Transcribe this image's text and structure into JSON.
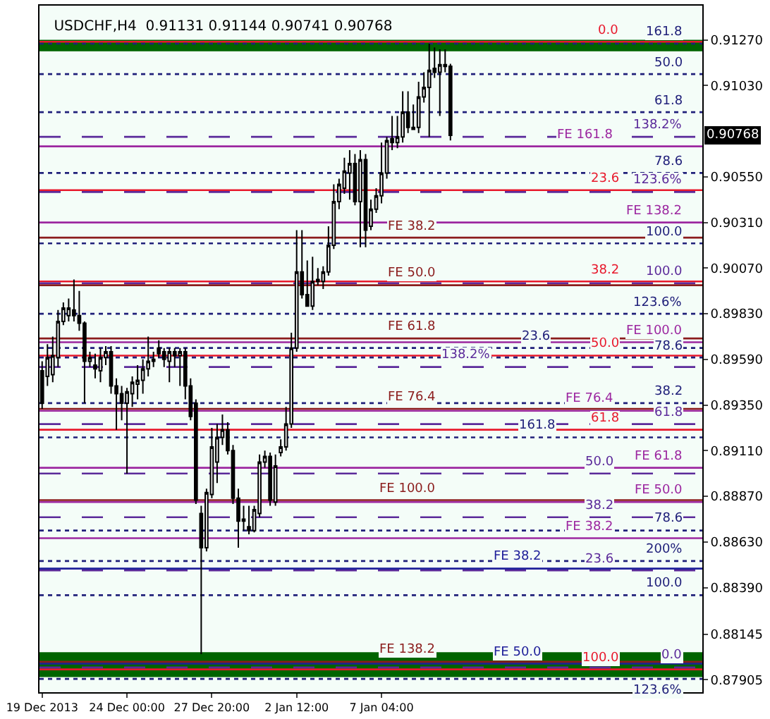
{
  "chart_data": {
    "type": "candlestick",
    "title": "USDCHF,H4  0.91131 0.91144 0.90741 0.90768",
    "color": "#000000",
    "categories": [
      "19 Dec 2013",
      null,
      null,
      null,
      null,
      null,
      null,
      null,
      null,
      null,
      null,
      null,
      null,
      null,
      null,
      null,
      "24 Dec 00:00",
      null,
      null,
      null,
      null,
      null,
      null,
      null,
      null,
      null,
      null,
      null,
      null,
      null,
      null,
      null,
      "27 Dec 20:00",
      null,
      null,
      null,
      null,
      null,
      null,
      null,
      null,
      null,
      null,
      null,
      null,
      null,
      null,
      null,
      "2 Jan 12:00",
      null,
      null,
      null,
      null,
      null,
      null,
      null,
      null,
      null,
      null,
      null,
      null,
      null,
      null,
      null,
      "7 Jan 04:00",
      null,
      null,
      null,
      null,
      null,
      null,
      null,
      null,
      null,
      null,
      null,
      null,
      null,
      null,
      null,
      null,
      null,
      null,
      null,
      null,
      null,
      null,
      null,
      null,
      null,
      null,
      null,
      null,
      null,
      null,
      null,
      null,
      null,
      null,
      null,
      null,
      null,
      null,
      null,
      null,
      null,
      null,
      null,
      null,
      null,
      null,
      null,
      null,
      null,
      null,
      null,
      null,
      null,
      null,
      null,
      null,
      null,
      null,
      null,
      null
    ],
    "ohlc": [
      [
        0.8953,
        0.8958,
        0.8933,
        0.8936
      ],
      [
        0.895,
        0.8967,
        0.8945,
        0.896
      ],
      [
        0.8951,
        0.8971,
        0.8947,
        0.8961
      ],
      [
        0.896,
        0.8985,
        0.8955,
        0.8979
      ],
      [
        0.8979,
        0.8989,
        0.8977,
        0.8986
      ],
      [
        0.8982,
        0.8991,
        0.8979,
        0.8986
      ],
      [
        0.8985,
        0.9001,
        0.8979,
        0.8982
      ],
      [
        0.8982,
        0.8995,
        0.8974,
        0.8978
      ],
      [
        0.8978,
        0.8979,
        0.8936,
        0.8958
      ],
      [
        0.8958,
        0.8963,
        0.8955,
        0.896
      ],
      [
        0.8956,
        0.8962,
        0.8949,
        0.8954
      ],
      [
        0.8953,
        0.8965,
        0.8947,
        0.896
      ],
      [
        0.896,
        0.8966,
        0.8956,
        0.8963
      ],
      [
        0.8963,
        0.8966,
        0.8941,
        0.8945
      ],
      [
        0.8945,
        0.8949,
        0.8922,
        0.8941
      ],
      [
        0.8941,
        0.8945,
        0.8927,
        0.8936
      ],
      [
        0.8936,
        0.8944,
        0.8899,
        0.8942
      ],
      [
        0.8941,
        0.895,
        0.8934,
        0.8947
      ],
      [
        0.8946,
        0.8956,
        0.8938,
        0.8948
      ],
      [
        0.8948,
        0.8959,
        0.8941,
        0.8954
      ],
      [
        0.8954,
        0.8971,
        0.895,
        0.8958
      ],
      [
        0.8958,
        0.8963,
        0.8955,
        0.8959
      ],
      [
        0.8965,
        0.8969,
        0.896,
        0.8962
      ],
      [
        0.8963,
        0.8965,
        0.8955,
        0.8959
      ],
      [
        0.8958,
        0.8965,
        0.8947,
        0.8963
      ],
      [
        0.8963,
        0.8965,
        0.8955,
        0.8961
      ],
      [
        0.8961,
        0.8965,
        0.8945,
        0.8963
      ],
      [
        0.8963,
        0.8965,
        0.8938,
        0.8945
      ],
      [
        0.8945,
        0.8949,
        0.8927,
        0.8929
      ],
      [
        0.8936,
        0.8938,
        0.8883,
        0.8885
      ],
      [
        0.8878,
        0.8882,
        0.8804,
        0.886
      ],
      [
        0.886,
        0.8891,
        0.8858,
        0.8889
      ],
      [
        0.8888,
        0.8923,
        0.8886,
        0.8913
      ],
      [
        0.8905,
        0.8925,
        0.8894,
        0.8918
      ],
      [
        0.8918,
        0.893,
        0.8914,
        0.8922
      ],
      [
        0.8922,
        0.8926,
        0.8909,
        0.8911
      ],
      [
        0.8911,
        0.8914,
        0.8883,
        0.8886
      ],
      [
        0.8886,
        0.8891,
        0.886,
        0.8874
      ],
      [
        0.8874,
        0.8882,
        0.8869,
        0.8875
      ],
      [
        0.8871,
        0.8882,
        0.8867,
        0.8869
      ],
      [
        0.8869,
        0.8882,
        0.8868,
        0.888
      ],
      [
        0.8878,
        0.8909,
        0.8876,
        0.8905
      ],
      [
        0.8905,
        0.8911,
        0.8902,
        0.8908
      ],
      [
        0.8908,
        0.891,
        0.8882,
        0.8885
      ],
      [
        0.8884,
        0.8909,
        0.8882,
        0.8903
      ],
      [
        0.891,
        0.8917,
        0.8908,
        0.8913
      ],
      [
        0.8913,
        0.8934,
        0.8911,
        0.8925
      ],
      [
        0.8925,
        0.8973,
        0.8923,
        0.8965
      ],
      [
        0.8965,
        0.9027,
        0.8963,
        0.9005
      ],
      [
        0.9005,
        0.9027,
        0.8991,
        0.8993
      ],
      [
        0.8993,
        0.9011,
        0.8987,
        0.8987
      ],
      [
        0.8987,
        0.9013,
        0.8985,
        0.9
      ],
      [
        0.9,
        0.9007,
        0.8998,
        0.9001
      ],
      [
        0.9,
        0.9008,
        0.8996,
        0.9005
      ],
      [
        0.9005,
        0.9029,
        0.9003,
        0.9019
      ],
      [
        0.9019,
        0.9051,
        0.9017,
        0.9042
      ],
      [
        0.9042,
        0.9054,
        0.9038,
        0.9051
      ],
      [
        0.9049,
        0.9065,
        0.9046,
        0.9058
      ],
      [
        0.9057,
        0.9069,
        0.9043,
        0.9062
      ],
      [
        0.9062,
        0.9067,
        0.904,
        0.9042
      ],
      [
        0.9042,
        0.9069,
        0.9018,
        0.9064
      ],
      [
        0.9064,
        0.9067,
        0.9018,
        0.9027
      ],
      [
        0.9029,
        0.9043,
        0.9027,
        0.9038
      ],
      [
        0.9038,
        0.9049,
        0.9036,
        0.9045
      ],
      [
        0.9045,
        0.9073,
        0.9041,
        0.9057
      ],
      [
        0.9057,
        0.9076,
        0.9054,
        0.9074
      ],
      [
        0.9075,
        0.9087,
        0.9069,
        0.9073
      ],
      [
        0.9073,
        0.9087,
        0.907,
        0.9076
      ],
      [
        0.9076,
        0.91,
        0.9073,
        0.9089
      ],
      [
        0.9089,
        0.91,
        0.9078,
        0.9081
      ],
      [
        0.9081,
        0.9093,
        0.908,
        0.908
      ],
      [
        0.9081,
        0.9105,
        0.9078,
        0.9097
      ],
      [
        0.9097,
        0.911,
        0.9094,
        0.9102
      ],
      [
        0.9102,
        0.9125,
        0.9076,
        0.9111
      ],
      [
        0.9112,
        0.9123,
        0.9107,
        0.911
      ],
      [
        0.911,
        0.9122,
        0.9087,
        0.9114
      ],
      [
        0.9114,
        0.9122,
        0.911,
        0.9113
      ],
      [
        0.91131,
        0.91144,
        0.90741,
        0.90768
      ],
      null,
      null,
      null,
      null,
      null,
      null,
      null,
      null,
      null,
      null,
      null,
      null,
      null,
      null,
      null,
      null,
      null,
      null,
      null,
      null,
      null,
      null,
      null,
      null,
      null,
      null,
      null,
      null,
      null,
      null,
      null,
      null,
      null,
      null,
      null,
      null,
      null,
      null,
      null,
      null,
      null,
      null,
      null,
      null,
      null,
      null,
      null
    ],
    "ylim": [
      0.8784,
      0.9145
    ],
    "yticks": [
      {
        "value": 0.9127,
        "label": "0.91270"
      },
      {
        "value": 0.9103,
        "label": "0.91030"
      },
      {
        "value": 0.9055,
        "label": "0.90550"
      },
      {
        "value": 0.9031,
        "label": "0.90310"
      },
      {
        "value": 0.9007,
        "label": "0.90070"
      },
      {
        "value": 0.8983,
        "label": "0.89830"
      },
      {
        "value": 0.8959,
        "label": "0.89590"
      },
      {
        "value": 0.8935,
        "label": "0.89350"
      },
      {
        "value": 0.8911,
        "label": "0.89110"
      },
      {
        "value": 0.8887,
        "label": "0.88870"
      },
      {
        "value": 0.8863,
        "label": "0.88630"
      },
      {
        "value": 0.8839,
        "label": "0.88390"
      },
      0.88145,
      0.87905
    ],
    "bands": [
      {
        "axis": "y",
        "from": 0.9121,
        "to": 0.9127,
        "color": "#006400"
      },
      {
        "axis": "y",
        "from": 0.8792,
        "to": 0.8805,
        "color": "#006400"
      }
    ],
    "ref_lines": [
      {
        "axis": "y",
        "value": 0.9126,
        "color": "#e8192c",
        "line_style": "solid"
      },
      {
        "axis": "y",
        "value": 0.9048,
        "color": "#e8192c",
        "line_style": "solid"
      },
      {
        "axis": "y",
        "value": 0.9,
        "color": "#e8192c",
        "line_style": "solid"
      },
      {
        "axis": "y",
        "value": 0.8961,
        "color": "#e8192c",
        "line_style": "solid"
      },
      {
        "axis": "y",
        "value": 0.8922,
        "color": "#e8192c",
        "line_style": "solid"
      },
      {
        "axis": "y",
        "value": 0.8796,
        "color": "#e8192c",
        "line_style": "solid"
      },
      {
        "axis": "y",
        "value": 0.9125,
        "color": "#20207a",
        "line_style": "dotted"
      },
      {
        "axis": "y",
        "value": 0.9109,
        "color": "#20207a",
        "line_style": "dotted"
      },
      {
        "axis": "y",
        "value": 0.9089,
        "color": "#20207a",
        "line_style": "dotted"
      },
      {
        "axis": "y",
        "value": 0.9057,
        "color": "#20207a",
        "line_style": "dotted"
      },
      {
        "axis": "y",
        "value": 0.902,
        "color": "#20207a",
        "line_style": "dotted"
      },
      {
        "axis": "y",
        "value": 0.8983,
        "color": "#20207a",
        "line_style": "dotted"
      },
      {
        "axis": "y",
        "value": 0.8965,
        "color": "#20207a",
        "line_style": "dotted"
      },
      {
        "axis": "y",
        "value": 0.896,
        "color": "#20207a",
        "line_style": "dotted"
      },
      {
        "axis": "y",
        "value": 0.8936,
        "color": "#20207a",
        "line_style": "dotted"
      },
      {
        "axis": "y",
        "value": 0.8918,
        "color": "#20207a",
        "line_style": "dotted"
      },
      {
        "axis": "y",
        "value": 0.8869,
        "color": "#20207a",
        "line_style": "dotted"
      },
      {
        "axis": "y",
        "value": 0.8853,
        "color": "#20207a",
        "line_style": "dotted"
      },
      {
        "axis": "y",
        "value": 0.8835,
        "color": "#20207a",
        "line_style": "dotted"
      },
      {
        "axis": "y",
        "value": 0.8791,
        "color": "#20207a",
        "line_style": "dotted"
      },
      {
        "axis": "y",
        "value": 0.9076,
        "color": "#5b2a9a",
        "line_style": "dashed"
      },
      {
        "axis": "y",
        "value": 0.9047,
        "color": "#5b2a9a",
        "line_style": "dashed"
      },
      {
        "axis": "y",
        "value": 0.8999,
        "color": "#5b2a9a",
        "line_style": "dashed"
      },
      {
        "axis": "y",
        "value": 0.8955,
        "color": "#5b2a9a",
        "line_style": "dashed"
      },
      {
        "axis": "y",
        "value": 0.8925,
        "color": "#5b2a9a",
        "line_style": "dashed"
      },
      {
        "axis": "y",
        "value": 0.8899,
        "color": "#5b2a9a",
        "line_style": "dashed"
      },
      {
        "axis": "y",
        "value": 0.8876,
        "color": "#5b2a9a",
        "line_style": "dashed"
      },
      {
        "axis": "y",
        "value": 0.8848,
        "color": "#5b2a9a",
        "line_style": "dashed"
      },
      {
        "axis": "y",
        "value": 0.8797,
        "color": "#5b2a9a",
        "line_style": "dashed"
      },
      {
        "axis": "y",
        "value": 0.9071,
        "color": "#9c27a0",
        "line_style": "solid"
      },
      {
        "axis": "y",
        "value": 0.9031,
        "color": "#9c27a0",
        "line_style": "solid"
      },
      {
        "axis": "y",
        "value": 0.8968,
        "color": "#9c27a0",
        "line_style": "solid"
      },
      {
        "axis": "y",
        "value": 0.8932,
        "color": "#9c27a0",
        "line_style": "solid"
      },
      {
        "axis": "y",
        "value": 0.8902,
        "color": "#9c27a0",
        "line_style": "solid"
      },
      {
        "axis": "y",
        "value": 0.8884,
        "color": "#9c27a0",
        "line_style": "solid"
      },
      {
        "axis": "y",
        "value": 0.8865,
        "color": "#9c27a0",
        "line_style": "solid"
      },
      {
        "axis": "y",
        "value": 0.9023,
        "color": "#8b1c1c",
        "line_style": "solid"
      },
      {
        "axis": "y",
        "value": 0.8998,
        "color": "#8b1c1c",
        "line_style": "solid"
      },
      {
        "axis": "y",
        "value": 0.897,
        "color": "#8b1c1c",
        "line_style": "solid"
      },
      {
        "axis": "y",
        "value": 0.8933,
        "color": "#8b1c1c",
        "line_style": "solid"
      },
      {
        "axis": "y",
        "value": 0.8885,
        "color": "#8b1c1c",
        "line_style": "solid"
      },
      {
        "axis": "y",
        "value": 0.88,
        "color": "#8b1c1c",
        "line_style": "solid"
      },
      {
        "axis": "y",
        "value": 0.8849,
        "color": "#20209a",
        "line_style": "solid"
      },
      {
        "axis": "y",
        "value": 0.8799,
        "color": "#20209a",
        "line_style": "solid"
      }
    ],
    "annotations": [
      {
        "text": "0.0",
        "y": 0.9126
      },
      {
        "text": "23.6",
        "y": 0.9048
      },
      {
        "text": "38.2",
        "y": 0.9
      },
      {
        "text": "50.0",
        "y": 0.8961
      },
      {
        "text": "61.8",
        "y": 0.8922
      },
      {
        "text": "100.0",
        "y": 0.8796
      },
      {
        "text": "161.8",
        "y": 0.9125
      },
      {
        "text": "50.0",
        "y": 0.9109
      },
      {
        "text": "61.8",
        "y": 0.9089
      },
      {
        "text": "78.6",
        "y": 0.9057
      },
      {
        "text": "100.0",
        "y": 0.902
      },
      {
        "text": "123.6%",
        "y": 0.8983
      },
      {
        "text": "23.6",
        "y": 0.8965
      },
      {
        "text": "78.6",
        "y": 0.896
      },
      {
        "text": "38.2",
        "y": 0.8936
      },
      {
        "text": "161.8",
        "y": 0.8918
      },
      {
        "text": "78.6",
        "y": 0.8869
      },
      {
        "text": "200%",
        "y": 0.8853
      },
      {
        "text": "100.0",
        "y": 0.8835
      },
      {
        "text": "123.6%",
        "y": 0.8791
      },
      {
        "text": "138.2%",
        "y": 0.9076
      },
      {
        "text": "123.6%",
        "y": 0.9047
      },
      {
        "text": "100.0",
        "y": 0.8999
      },
      {
        "text": "138.2%",
        "y": 0.8955
      },
      {
        "text": "61.8",
        "y": 0.8925
      },
      {
        "text": "50.0",
        "y": 0.8899
      },
      {
        "text": "38.2",
        "y": 0.8876
      },
      {
        "text": "23.6",
        "y": 0.8848
      },
      {
        "text": "0.0",
        "y": 0.8797
      },
      {
        "text": "FE 161.8",
        "y": 0.9071
      },
      {
        "text": "FE 138.2",
        "y": 0.9031
      },
      {
        "text": "FE 100.0",
        "y": 0.8968
      },
      {
        "text": "FE 76.4",
        "y": 0.8932
      },
      {
        "text": "FE 61.8",
        "y": 0.8902
      },
      {
        "text": "FE 50.0",
        "y": 0.8884
      },
      {
        "text": "FE 38.2",
        "y": 0.8865
      },
      {
        "text": "FE 38.2",
        "y": 0.9023
      },
      {
        "text": "FE 50.0",
        "y": 0.8998
      },
      {
        "text": "FE 61.8",
        "y": 0.897
      },
      {
        "text": "FE 76.4",
        "y": 0.8933
      },
      {
        "text": "FE 100.0",
        "y": 0.8885
      },
      {
        "text": "FE 138.2",
        "y": 0.88
      },
      {
        "text": "FE 38.2",
        "y": 0.8849
      },
      {
        "text": "FE 50.0",
        "y": 0.8799
      },
      {
        "text": "0.90768",
        "y": 0.90768
      }
    ]
  }
}
